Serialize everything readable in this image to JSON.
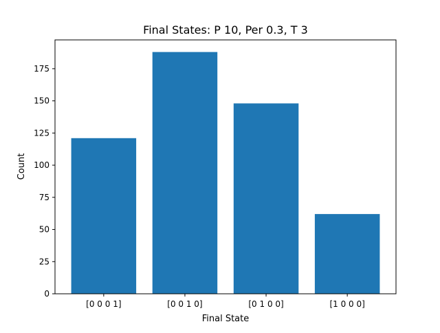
{
  "chart_data": {
    "type": "bar",
    "title": "Final States: P 10, Per 0.3, T 3",
    "xlabel": "Final State",
    "ylabel": "Count",
    "categories": [
      "[0 0 0 1]",
      "[0 0 1 0]",
      "[0 1 0 0]",
      "[1 0 0 0]"
    ],
    "values": [
      121,
      188,
      148,
      62
    ],
    "ylim": [
      0,
      197.4
    ],
    "yticks": [
      0,
      25,
      50,
      75,
      100,
      125,
      150,
      175
    ],
    "grid": false,
    "legend": "none",
    "bar_color": "#1f77b4"
  }
}
